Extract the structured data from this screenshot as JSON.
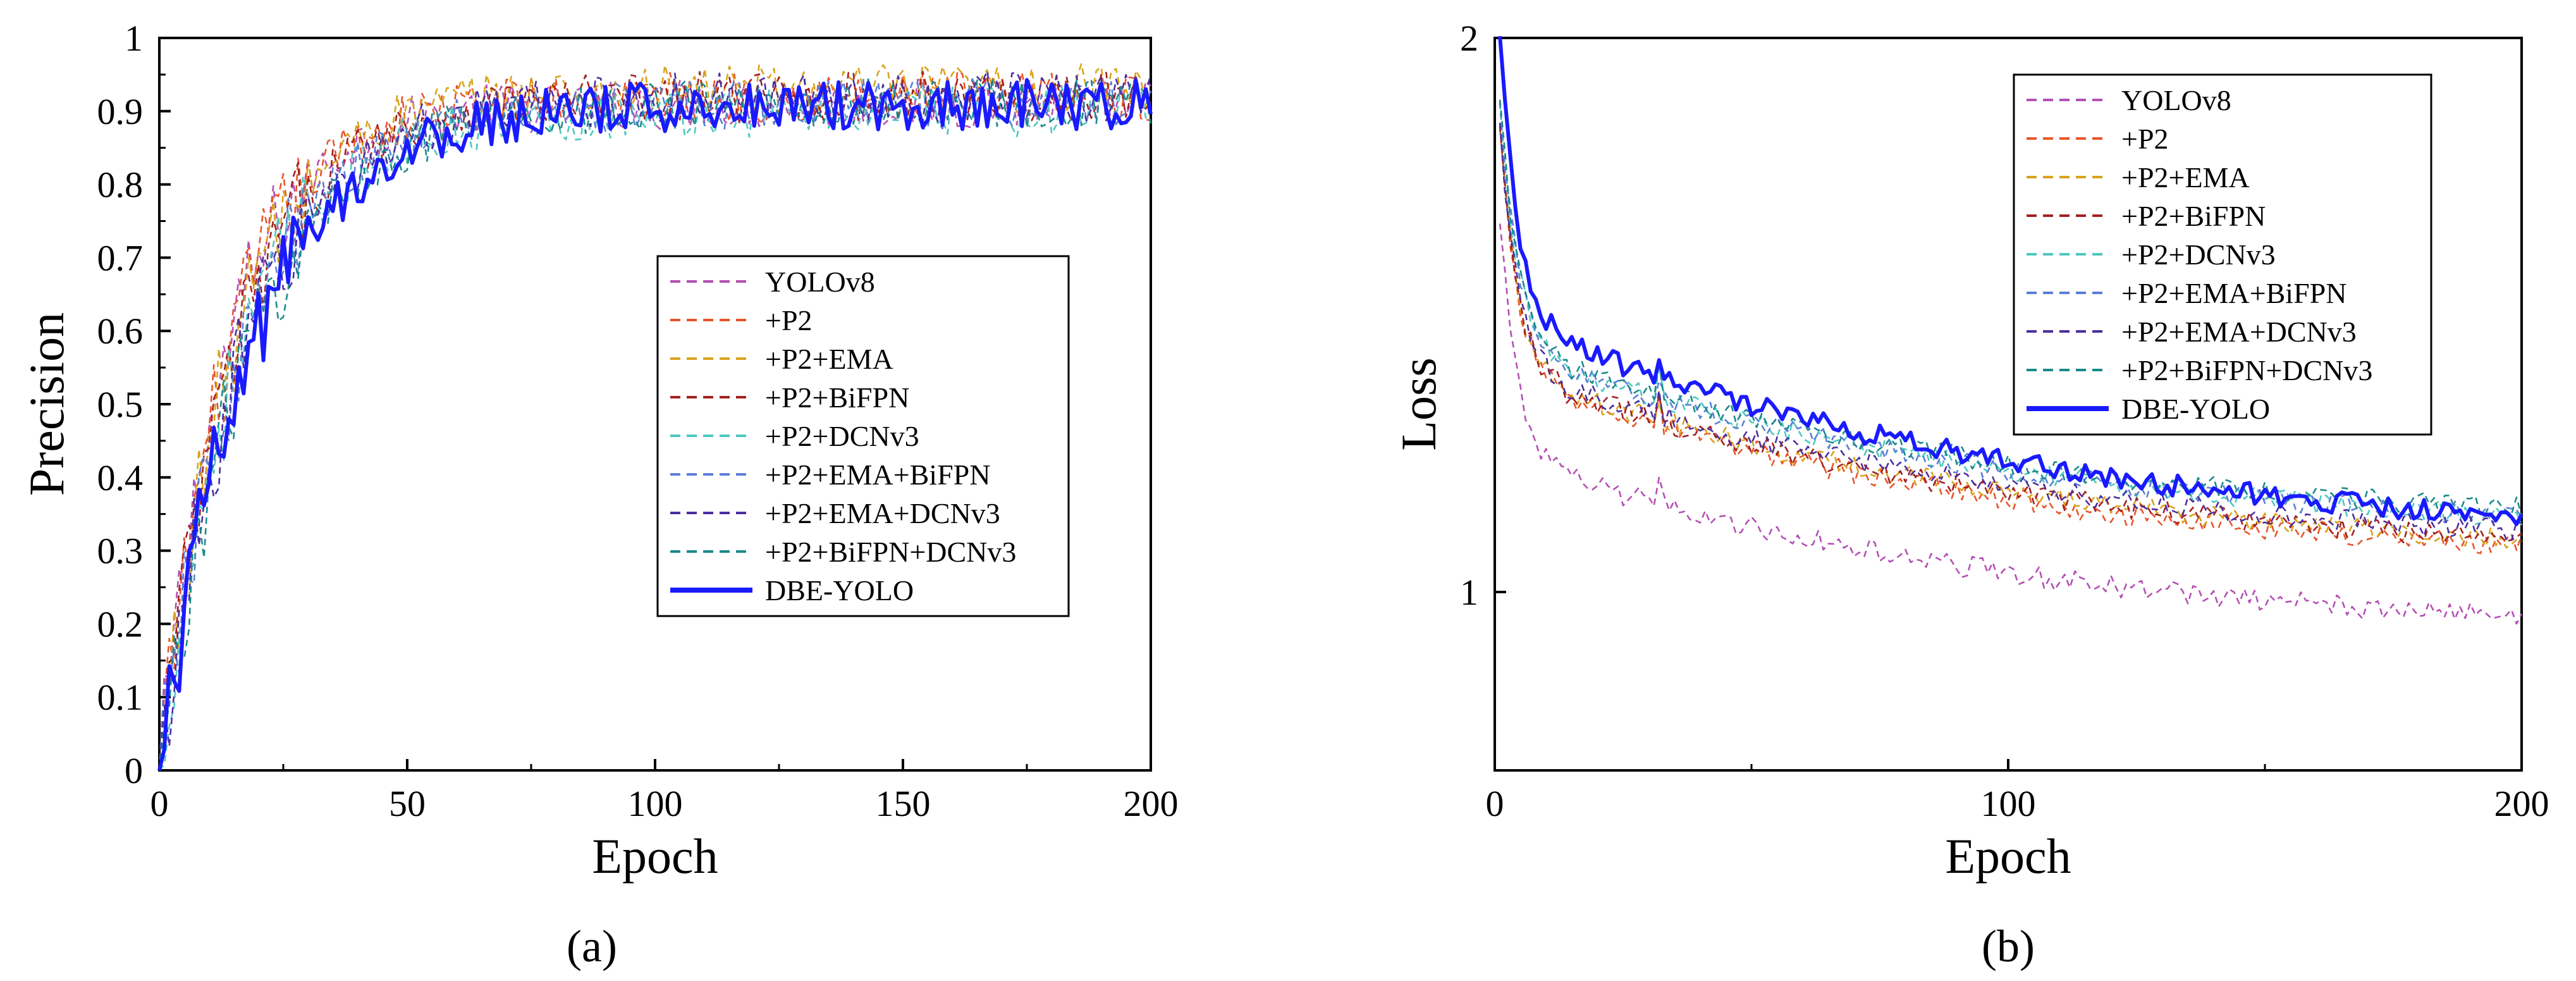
{
  "chart_data": [
    {
      "type": "line",
      "panel_label": "(a)",
      "xlabel": "Epoch",
      "ylabel": "Precision",
      "xlim": [
        0,
        200
      ],
      "ylim": [
        0,
        1
      ],
      "x_ticks": [
        0,
        50,
        100,
        150,
        200
      ],
      "y_ticks": [
        0,
        0.1,
        0.2,
        0.3,
        0.4,
        0.5,
        0.6,
        0.7,
        0.8,
        0.9,
        1
      ],
      "y_tick_labels": [
        "0",
        "0.1",
        "0.2",
        "0.3",
        "0.4",
        "0.5",
        "0.6",
        "0.7",
        "0.8",
        "0.9",
        "1"
      ],
      "legend_position": "center-right",
      "series": [
        {
          "name": "YOLOv8",
          "color": "#b44fb4",
          "style": "dashed",
          "final": 0.91
        },
        {
          "name": "+P2",
          "color": "#e8552a",
          "style": "dashed",
          "final": 0.92
        },
        {
          "name": "+P2+EMA",
          "color": "#d9a21c",
          "style": "dashed",
          "final": 0.93
        },
        {
          "name": "+P2+BiFPN",
          "color": "#a32121",
          "style": "dashed",
          "final": 0.92
        },
        {
          "name": "+P2+DCNv3",
          "color": "#4dc8c0",
          "style": "dashed",
          "final": 0.9
        },
        {
          "name": "+P2+EMA+BiFPN",
          "color": "#5b7fd6",
          "style": "dashed",
          "final": 0.91
        },
        {
          "name": "+P2+EMA+DCNv3",
          "color": "#4b2fa0",
          "style": "dashed",
          "final": 0.92
        },
        {
          "name": "+P2+BiFPN+DCNv3",
          "color": "#1a8a8a",
          "style": "dashed",
          "final": 0.91
        },
        {
          "name": "DBE-YOLO",
          "color": "#1a1aff",
          "style": "solid",
          "final": 0.91
        }
      ]
    },
    {
      "type": "line",
      "panel_label": "(b)",
      "xlabel": "Epoch",
      "ylabel": "Loss",
      "xlim": [
        0,
        200
      ],
      "ylim": [
        0.8,
        2
      ],
      "y_scale": "log",
      "x_ticks": [
        0,
        100,
        200
      ],
      "x_minor_ticks": [
        50,
        150
      ],
      "y_ticks": [
        1,
        2
      ],
      "y_tick_labels": [
        "1",
        "2"
      ],
      "legend_position": "top-right",
      "series": [
        {
          "name": "YOLOv8",
          "color": "#b44fb4",
          "style": "dashed",
          "start": 1.6,
          "final": 0.97
        },
        {
          "name": "+P2",
          "color": "#e8552a",
          "style": "dashed",
          "start": 1.8,
          "final": 1.06
        },
        {
          "name": "+P2+EMA",
          "color": "#d9a21c",
          "style": "dashed",
          "start": 1.8,
          "final": 1.07
        },
        {
          "name": "+P2+BiFPN",
          "color": "#a32121",
          "style": "dashed",
          "start": 1.8,
          "final": 1.07
        },
        {
          "name": "+P2+DCNv3",
          "color": "#4dc8c0",
          "style": "dashed",
          "start": 1.85,
          "final": 1.1
        },
        {
          "name": "+P2+EMA+BiFPN",
          "color": "#5b7fd6",
          "style": "dashed",
          "start": 1.85,
          "final": 1.1
        },
        {
          "name": "+P2+EMA+DCNv3",
          "color": "#4b2fa0",
          "style": "dashed",
          "start": 1.8,
          "final": 1.08
        },
        {
          "name": "+P2+BiFPN+DCNv3",
          "color": "#1a8a8a",
          "style": "dashed",
          "start": 1.85,
          "final": 1.11
        },
        {
          "name": "DBE-YOLO",
          "color": "#1a1aff",
          "style": "solid",
          "start": 2.0,
          "final": 1.1
        }
      ]
    }
  ]
}
